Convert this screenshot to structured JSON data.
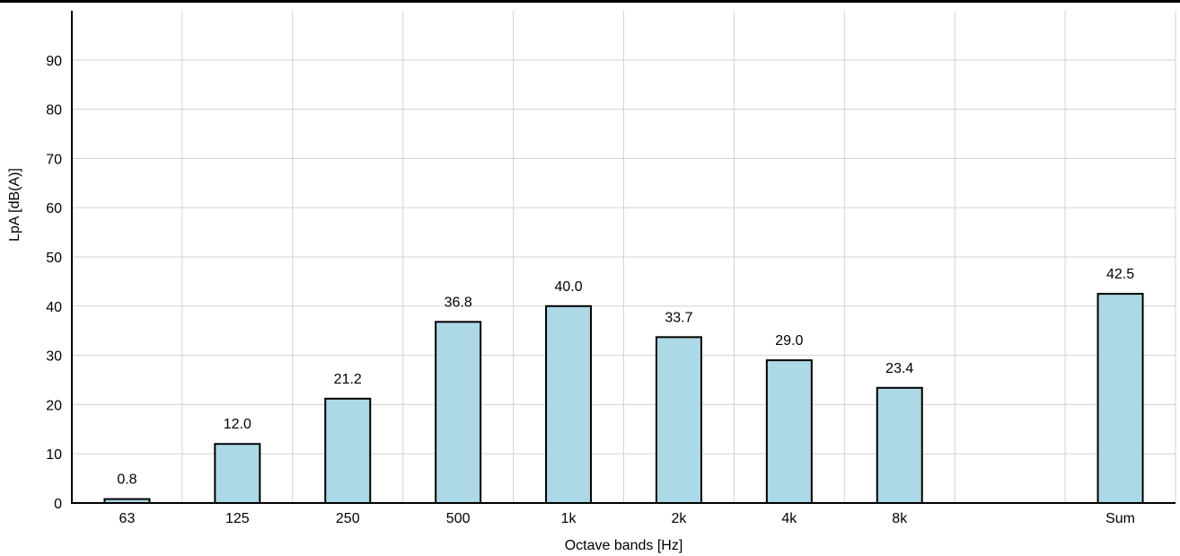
{
  "chart_data": {
    "type": "bar",
    "xlabel": "Octave bands [Hz]",
    "ylabel": "LpA [dB(A)]",
    "ylim": [
      0,
      100
    ],
    "yticks": [
      0,
      10,
      20,
      30,
      40,
      50,
      60,
      70,
      80,
      90
    ],
    "grid": true,
    "categories": [
      "63",
      "125",
      "250",
      "500",
      "1k",
      "2k",
      "4k",
      "8k",
      "",
      "Sum"
    ],
    "values": [
      0.8,
      12.0,
      21.2,
      36.8,
      40.0,
      33.7,
      29.0,
      23.4,
      0,
      42.5
    ],
    "value_labels": [
      "0.8",
      "12.0",
      "21.2",
      "36.8",
      "40.0",
      "33.7",
      "29.0",
      "23.4",
      "",
      "42.5"
    ],
    "colors": {
      "bar_fill": "#add8e6",
      "bar_stroke": "#000000",
      "grid": "#d3d3d3",
      "axis": "#000000"
    }
  }
}
